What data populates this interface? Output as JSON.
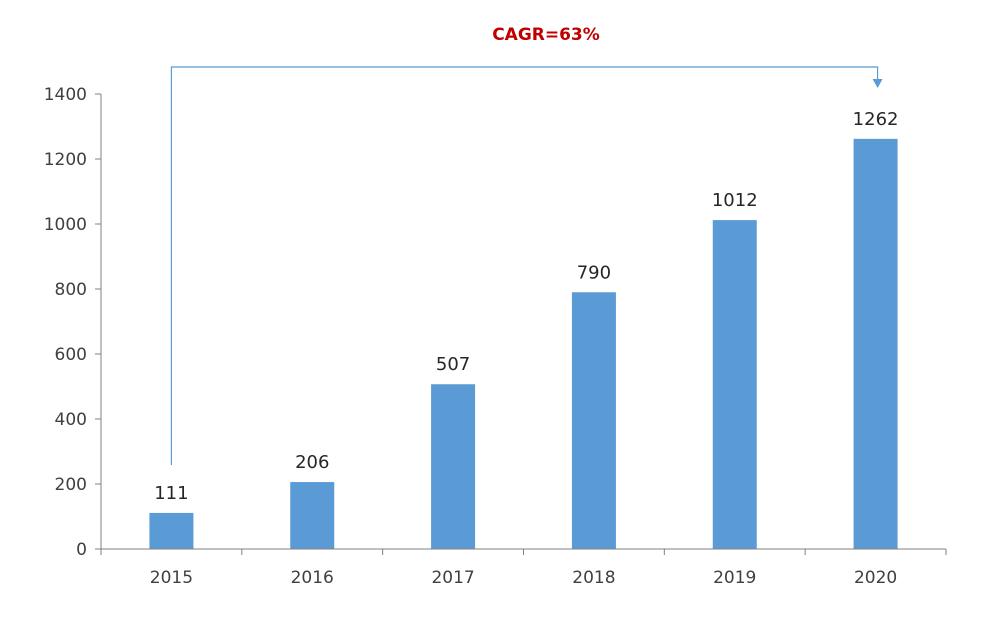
{
  "chart_data": {
    "type": "bar",
    "categories": [
      "2015",
      "2016",
      "2017",
      "2018",
      "2019",
      "2020"
    ],
    "values": [
      111,
      206,
      507,
      790,
      1012,
      1262
    ],
    "data_labels": [
      "111",
      "206",
      "507",
      "790",
      "1012",
      "1262"
    ],
    "title": "",
    "xlabel": "",
    "ylabel": "",
    "ylim": [
      0,
      1400
    ],
    "yticks": [
      0,
      200,
      400,
      600,
      800,
      1000,
      1200,
      1400
    ],
    "grid": false,
    "legend": "none",
    "annotation": {
      "text": "CAGR=63%",
      "from_category": "2015",
      "to_category": "2020",
      "arrow": "bracket"
    },
    "colors": {
      "bar": "#5b9bd5",
      "bracket": "#5b9bd5",
      "annotation": "#c00000",
      "axis": "#808080"
    }
  }
}
